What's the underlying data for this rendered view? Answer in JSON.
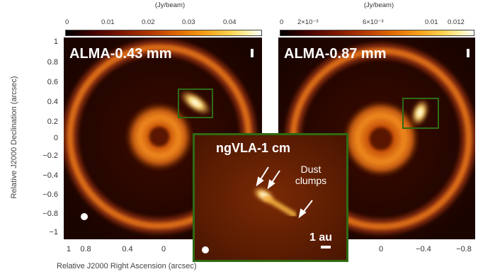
{
  "colorbar_left": {
    "units": "(Jy/beam)",
    "ticks": [
      "0",
      "0.01",
      "0.02",
      "0.03",
      "0.04"
    ]
  },
  "colorbar_right": {
    "units": "(Jy/beam)",
    "ticks": [
      "0",
      "2×10⁻³",
      "6×10⁻³",
      "0.01",
      "0.012"
    ]
  },
  "panels": {
    "left_label": "ALMA-0.43 mm",
    "right_label": "ALMA-0.87 mm",
    "inset_label": "ngVLA-1 cm",
    "inset_annotation": [
      "Dust",
      "clumps"
    ],
    "scale_bar": "1 au"
  },
  "axes": {
    "ylabel": "Relative J2000 Declination (arcsec)",
    "xlabel": "Relative J2000 Right Ascension (arcsec)",
    "yticks": [
      "1",
      "0.8",
      "0.6",
      "0.4",
      "0.2",
      "0",
      "−0.2",
      "−0.4",
      "−0.6",
      "−0.8",
      "−1"
    ],
    "xticks_left": [
      "1",
      "0.8",
      "0.4",
      "0"
    ],
    "xticks_right": [
      "0",
      "−0.4",
      "−0.8"
    ]
  },
  "colors": {
    "background_dark": "#1f0500",
    "ring": "#d86a18",
    "box_outline": "#2e6b12"
  }
}
